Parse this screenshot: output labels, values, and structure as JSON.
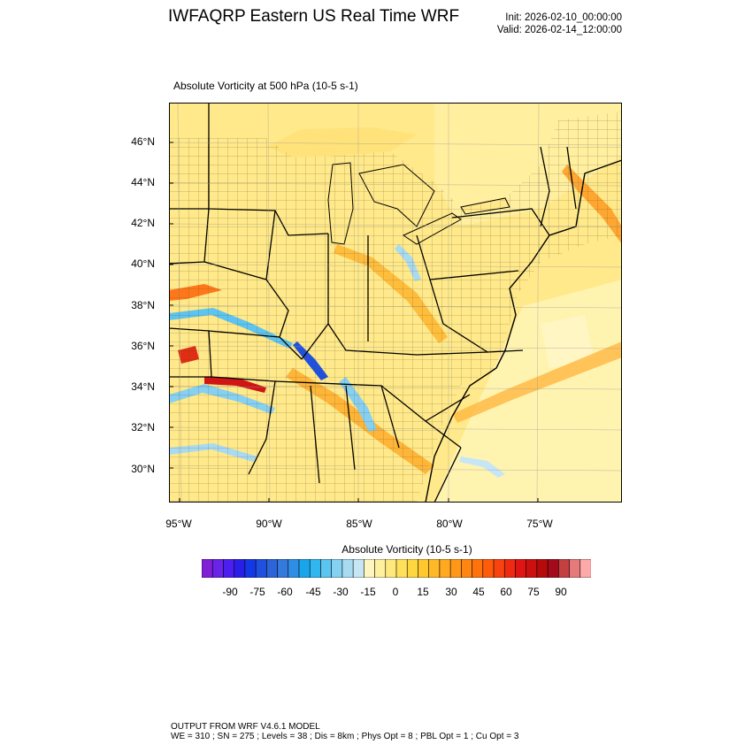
{
  "header": {
    "title": "IWFAQRP Eastern US Real Time WRF",
    "init": "Init: 2026-02-10_00:00:00",
    "valid": "Valid: 2026-02-14_12:00:00"
  },
  "panel": {
    "field_title": "Absolute Vorticity at 500 hPa   (10-5 s-1)",
    "lat_labels": [
      "46°N",
      "44°N",
      "42°N",
      "40°N",
      "38°N",
      "36°N",
      "34°N",
      "32°N",
      "30°N"
    ],
    "lon_labels": [
      "95°W",
      "90°W",
      "85°W",
      "80°W",
      "75°W"
    ]
  },
  "colorbar": {
    "title": "Absolute Vorticity  (10-5 s-1)",
    "labels": [
      "-90",
      "-75",
      "-60",
      "-45",
      "-30",
      "-15",
      "0",
      "15",
      "30",
      "45",
      "60",
      "75",
      "90"
    ],
    "colors": [
      "#7f1fd6",
      "#6a23e8",
      "#4c1ff0",
      "#2a1fe8",
      "#1438e6",
      "#1f50e0",
      "#2e64d9",
      "#3479dc",
      "#2e8ee6",
      "#1aa5eb",
      "#31b6ef",
      "#5cc4f0",
      "#86d0f2",
      "#a8dbf2",
      "#c6e6f5",
      "#fff6bf",
      "#fff0a0",
      "#ffe97d",
      "#ffe05a",
      "#ffd640",
      "#ffc830",
      "#ffb928",
      "#ffa820",
      "#ff9818",
      "#ff8612",
      "#ff720c",
      "#ff5c0a",
      "#f84310",
      "#ee2a12",
      "#e01414",
      "#cc0f0f",
      "#b60b0b",
      "#a40b1a",
      "#c43f3f",
      "#e67a7a",
      "#ffaaaa"
    ]
  },
  "footer": {
    "line1": "OUTPUT FROM WRF V4.6.1 MODEL",
    "line2": "WE = 310 ; SN = 275 ; Levels = 38 ; Dis = 8km ; Phys Opt = 8 ; PBL Opt = 1 ; Cu Opt = 3"
  }
}
